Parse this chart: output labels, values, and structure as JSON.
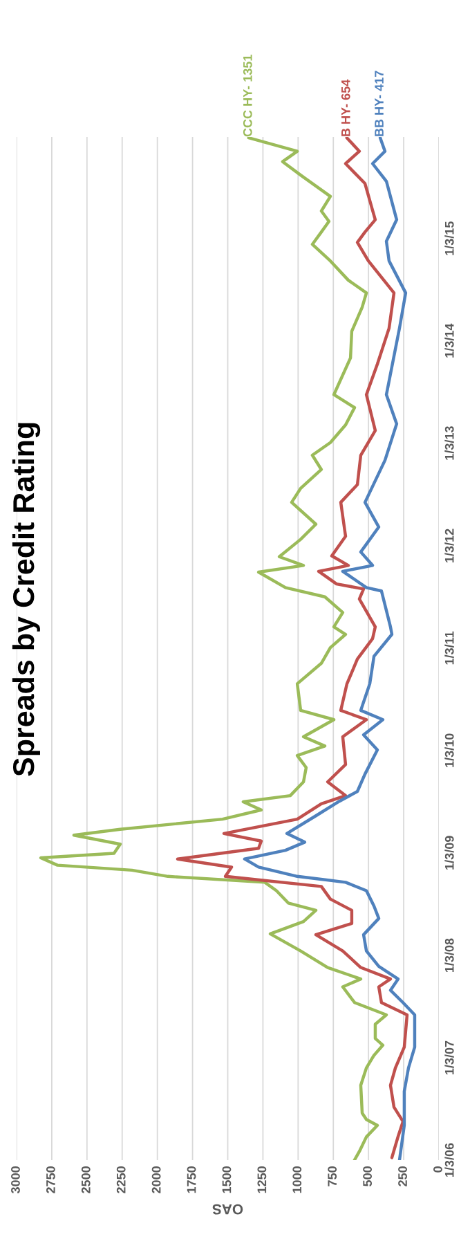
{
  "chart_data": {
    "type": "line",
    "orientation": "horizontal",
    "title": "Spreads by Credit Rating",
    "xlabel": "OAS",
    "ylim": [
      "2006-01-03",
      "2015-12-31"
    ],
    "yticks": [
      {
        "value": "2006-01-03",
        "label": "1/3/06"
      },
      {
        "value": "2007-01-03",
        "label": "1/3/07"
      },
      {
        "value": "2008-01-03",
        "label": "1/3/08"
      },
      {
        "value": "2009-01-03",
        "label": "1/3/09"
      },
      {
        "value": "2010-01-03",
        "label": "1/3/10"
      },
      {
        "value": "2011-01-03",
        "label": "1/3/11"
      },
      {
        "value": "2012-01-03",
        "label": "1/3/12"
      },
      {
        "value": "2013-01-03",
        "label": "1/3/13"
      },
      {
        "value": "2014-01-03",
        "label": "1/3/14"
      },
      {
        "value": "2015-01-03",
        "label": "1/3/15"
      }
    ],
    "xlim": [
      3000,
      0
    ],
    "xticks": [
      3000,
      2750,
      2500,
      2250,
      2000,
      1750,
      1500,
      1250,
      1000,
      750,
      500,
      250,
      0
    ],
    "grid": "x",
    "legend": false,
    "marker": "none",
    "line_style": "solid",
    "series": [
      {
        "name": "CCC HY- 1351",
        "color": "#9bbb59",
        "x": [
          "2006-01-03",
          "2006-02-03",
          "2006-03-27",
          "2006-05-07",
          "2006-05-28",
          "2006-06-20",
          "2006-09-27",
          "2006-11-28",
          "2007-01-12",
          "2007-02-17",
          "2007-03-13",
          "2007-05-03",
          "2007-06-05",
          "2007-07-19",
          "2007-09-13",
          "2007-10-11",
          "2007-11-21",
          "2008-01-19",
          "2008-03-20",
          "2008-05-03",
          "2008-06-12",
          "2008-07-08",
          "2008-08-21",
          "2008-09-20",
          "2008-10-11",
          "2008-11-02",
          "2008-11-20",
          "2008-12-16",
          "2009-01-01",
          "2009-02-03",
          "2009-03-07",
          "2009-03-28",
          "2009-05-03",
          "2009-06-05",
          "2009-07-04",
          "2009-07-26",
          "2009-09-13",
          "2009-11-03",
          "2009-12-16",
          "2010-01-19",
          "2010-02-21",
          "2010-04-23",
          "2010-05-26",
          "2010-08-29",
          "2010-11-10",
          "2011-01-05",
          "2011-02-21",
          "2011-03-20",
          "2011-05-10",
          "2011-07-05",
          "2011-08-07",
          "2011-10-01",
          "2011-10-25",
          "2011-11-25",
          "2012-01-26",
          "2012-03-20",
          "2012-06-06",
          "2012-07-26",
          "2012-10-01",
          "2012-11-21",
          "2013-01-05",
          "2013-03-09",
          "2013-05-10",
          "2013-06-25",
          "2013-11-03",
          "2014-02-06",
          "2014-05-03",
          "2014-06-23",
          "2014-08-07",
          "2014-10-15",
          "2014-12-13",
          "2015-01-26",
          "2015-03-05",
          "2015-04-11",
          "2015-06-02",
          "2015-08-17",
          "2015-10-04",
          "2015-11-10",
          "2015-12-28"
        ],
        "values": [
          600,
          565,
          515,
          437,
          515,
          545,
          555,
          515,
          461,
          398,
          452,
          452,
          373,
          599,
          683,
          555,
          790,
          982,
          1198,
          962,
          874,
          1070,
          1154,
          1237,
          1925,
          2180,
          2710,
          2828,
          2308,
          2264,
          2593,
          2264,
          1537,
          1262,
          1390,
          1056,
          962,
          943,
          1006,
          810,
          962,
          746,
          982,
          1006,
          835,
          771,
          663,
          746,
          683,
          810,
          1090,
          1281,
          962,
          1134,
          982,
          874,
          1046,
          982,
          835,
          899,
          771,
          663,
          599,
          746,
          628,
          619,
          545,
          515,
          643,
          771,
          899,
          835,
          781,
          835,
          771,
          982,
          1110,
          1006,
          1351
        ]
      },
      {
        "name": "B HY- 654",
        "color": "#c0504d",
        "x": [
          "2006-01-12",
          "2006-03-28",
          "2006-05-21",
          "2006-07-11",
          "2006-09-27",
          "2006-11-28",
          "2007-02-10",
          "2007-06-05",
          "2007-07-19",
          "2007-09-13",
          "2007-10-11",
          "2007-11-21",
          "2008-01-19",
          "2008-03-17",
          "2008-04-26",
          "2008-06-12",
          "2008-07-22",
          "2008-09-05",
          "2008-10-11",
          "2008-11-13",
          "2008-12-12",
          "2009-01-19",
          "2009-02-14",
          "2009-03-13",
          "2009-05-03",
          "2009-06-27",
          "2009-07-26",
          "2009-09-13",
          "2009-11-14",
          "2010-02-21",
          "2010-04-23",
          "2010-05-26",
          "2010-08-29",
          "2010-11-25",
          "2011-02-06",
          "2011-03-20",
          "2011-06-27",
          "2011-08-02",
          "2011-08-20",
          "2011-10-04",
          "2011-10-25",
          "2011-11-28",
          "2012-02-06",
          "2012-06-06",
          "2012-08-08",
          "2012-11-21",
          "2013-02-17",
          "2013-06-25",
          "2013-10-12",
          "2014-02-17",
          "2014-06-23",
          "2014-10-15",
          "2014-12-20",
          "2015-01-26",
          "2015-03-11",
          "2015-04-13",
          "2015-07-18",
          "2015-09-27",
          "2015-11-10",
          "2015-12-28"
        ],
        "values": [
          334,
          290,
          255,
          319,
          344,
          309,
          246,
          226,
          408,
          427,
          344,
          555,
          683,
          874,
          619,
          619,
          771,
          835,
          1517,
          1473,
          1856,
          1281,
          1262,
          1527,
          1006,
          835,
          663,
          790,
          663,
          683,
          515,
          697,
          653,
          579,
          471,
          452,
          565,
          535,
          727,
          854,
          643,
          761,
          663,
          697,
          579,
          555,
          452,
          515,
          437,
          354,
          319,
          501,
          579,
          525,
          452,
          471,
          525,
          663,
          565,
          654
        ]
      },
      {
        "name": "BB HY- 417",
        "color": "#4f81bd",
        "x": [
          "2006-01-03",
          "2006-05-07",
          "2006-09-05",
          "2006-11-28",
          "2007-02-10",
          "2007-06-05",
          "2007-07-19",
          "2007-09-01",
          "2007-10-11",
          "2007-11-25",
          "2008-01-19",
          "2008-03-17",
          "2008-05-14",
          "2008-06-27",
          "2008-08-21",
          "2008-09-20",
          "2008-10-11",
          "2008-11-13",
          "2008-12-12",
          "2009-01-12",
          "2009-02-10",
          "2009-03-13",
          "2009-05-15",
          "2009-07-06",
          "2009-08-10",
          "2009-10-11",
          "2010-01-05",
          "2010-02-28",
          "2010-04-23",
          "2010-05-26",
          "2010-08-29",
          "2010-12-05",
          "2011-02-21",
          "2011-03-20",
          "2011-07-26",
          "2011-08-07",
          "2011-10-04",
          "2011-10-25",
          "2011-12-12",
          "2012-03-10",
          "2012-06-06",
          "2012-11-03",
          "2013-03-13",
          "2013-06-25",
          "2014-02-17",
          "2014-06-23",
          "2014-10-15",
          "2014-12-24",
          "2015-03-11",
          "2015-07-26",
          "2015-09-27",
          "2015-11-10",
          "2015-12-28"
        ],
        "values": [
          280,
          246,
          246,
          216,
          172,
          172,
          255,
          344,
          290,
          427,
          515,
          535,
          427,
          461,
          515,
          663,
          1006,
          1281,
          1380,
          1090,
          953,
          1080,
          874,
          707,
          579,
          525,
          437,
          535,
          398,
          555,
          491,
          461,
          334,
          344,
          408,
          515,
          683,
          471,
          555,
          427,
          525,
          383,
          300,
          373,
          280,
          236,
          354,
          373,
          300,
          373,
          471,
          383,
          417
        ]
      }
    ]
  }
}
